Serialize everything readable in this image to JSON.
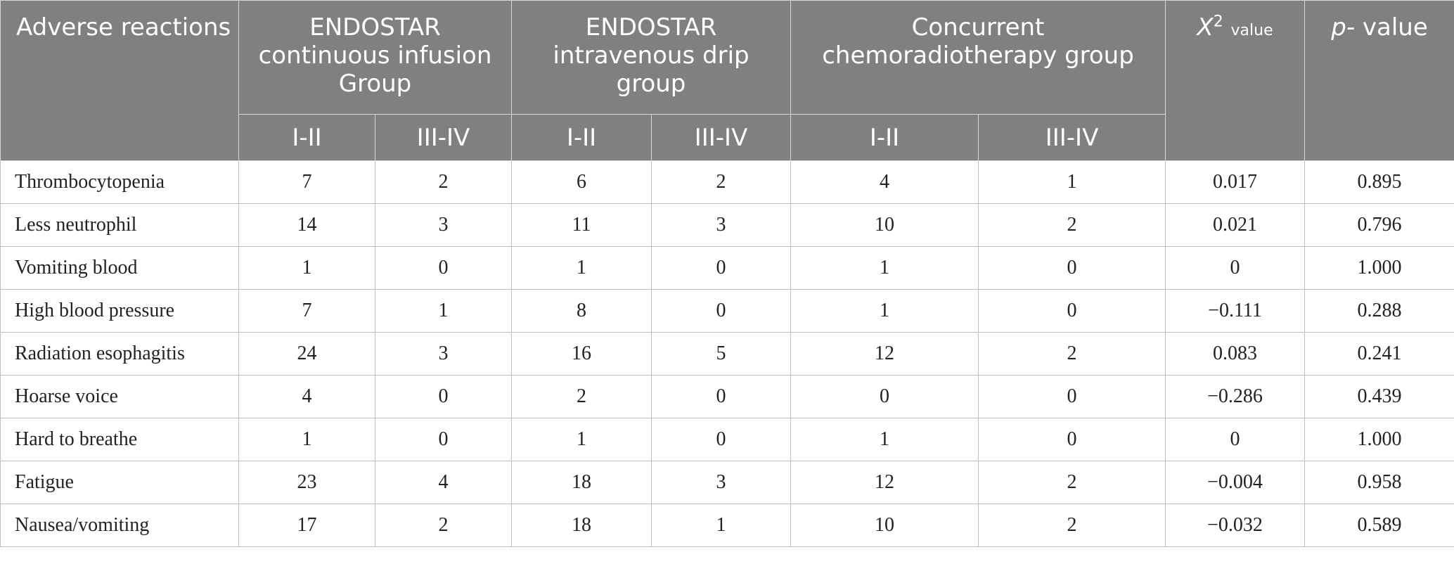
{
  "header": {
    "col0": "Adverse reactions",
    "group1": "ENDOSTAR continuous infusion Group",
    "group2": "ENDOSTAR intravenous drip group",
    "group3": "Concurrent chemoradiotherapy group",
    "chi_symbol": "X",
    "chi_sup": "2",
    "chi_suffix": "value",
    "p_symbol": "p-",
    "p_suffix": "value",
    "grade_low": "I-II",
    "grade_high": "III-IV"
  },
  "rows": [
    {
      "label": "Thrombocytopenia",
      "v": [
        "7",
        "2",
        "6",
        "2",
        "4",
        "1",
        "0.017",
        "0.895"
      ]
    },
    {
      "label": "Less neutrophil",
      "v": [
        "14",
        "3",
        "11",
        "3",
        "10",
        "2",
        "0.021",
        "0.796"
      ]
    },
    {
      "label": "Vomiting blood",
      "v": [
        "1",
        "0",
        "1",
        "0",
        "1",
        "0",
        "0",
        "1.000"
      ]
    },
    {
      "label": "High blood pressure",
      "v": [
        "7",
        "1",
        "8",
        "0",
        "1",
        "0",
        "−0.111",
        "0.288"
      ]
    },
    {
      "label": "Radiation esophagitis",
      "v": [
        "24",
        "3",
        "16",
        "5",
        "12",
        "2",
        "0.083",
        "0.241"
      ]
    },
    {
      "label": "Hoarse voice",
      "v": [
        "4",
        "0",
        "2",
        "0",
        "0",
        "0",
        "−0.286",
        "0.439"
      ]
    },
    {
      "label": "Hard to breathe",
      "v": [
        "1",
        "0",
        "1",
        "0",
        "1",
        "0",
        "0",
        "1.000"
      ]
    },
    {
      "label": "Fatigue",
      "v": [
        "23",
        "4",
        "18",
        "3",
        "12",
        "2",
        "−0.004",
        "0.958"
      ]
    },
    {
      "label": "Nausea/vomiting",
      "v": [
        "17",
        "2",
        "18",
        "1",
        "10",
        "2",
        "−0.032",
        "0.589"
      ]
    }
  ]
}
